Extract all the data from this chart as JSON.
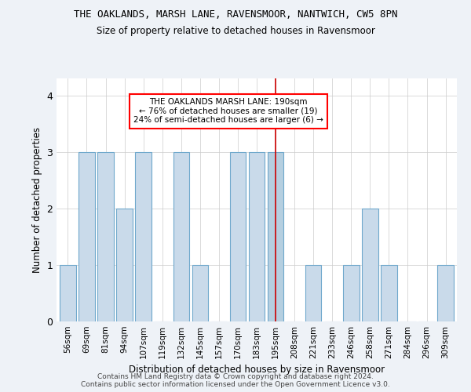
{
  "title": "THE OAKLANDS, MARSH LANE, RAVENSMOOR, NANTWICH, CW5 8PN",
  "subtitle": "Size of property relative to detached houses in Ravensmoor",
  "xlabel": "Distribution of detached houses by size in Ravensmoor",
  "ylabel": "Number of detached properties",
  "footnote": "Contains HM Land Registry data © Crown copyright and database right 2024.\nContains public sector information licensed under the Open Government Licence v3.0.",
  "categories": [
    "56sqm",
    "69sqm",
    "81sqm",
    "94sqm",
    "107sqm",
    "119sqm",
    "132sqm",
    "145sqm",
    "157sqm",
    "170sqm",
    "183sqm",
    "195sqm",
    "208sqm",
    "221sqm",
    "233sqm",
    "246sqm",
    "258sqm",
    "271sqm",
    "284sqm",
    "296sqm",
    "309sqm"
  ],
  "values": [
    1,
    3,
    3,
    2,
    3,
    0,
    3,
    1,
    0,
    3,
    3,
    3,
    0,
    1,
    0,
    1,
    2,
    1,
    0,
    0,
    1
  ],
  "highlight_index": 11,
  "bar_color": "#c9daea",
  "bar_edge_color": "#6fa8cc",
  "highlight_bar_color": "#b5cfe0",
  "highlight_line_color": "#cc0000",
  "annotation_text": "THE OAKLANDS MARSH LANE: 190sqm\n← 76% of detached houses are smaller (19)\n24% of semi-detached houses are larger (6) →",
  "ylim": [
    0,
    4.3
  ],
  "yticks": [
    0,
    1,
    2,
    3,
    4
  ],
  "bg_color": "#eef2f7",
  "plot_bg_color": "#ffffff"
}
